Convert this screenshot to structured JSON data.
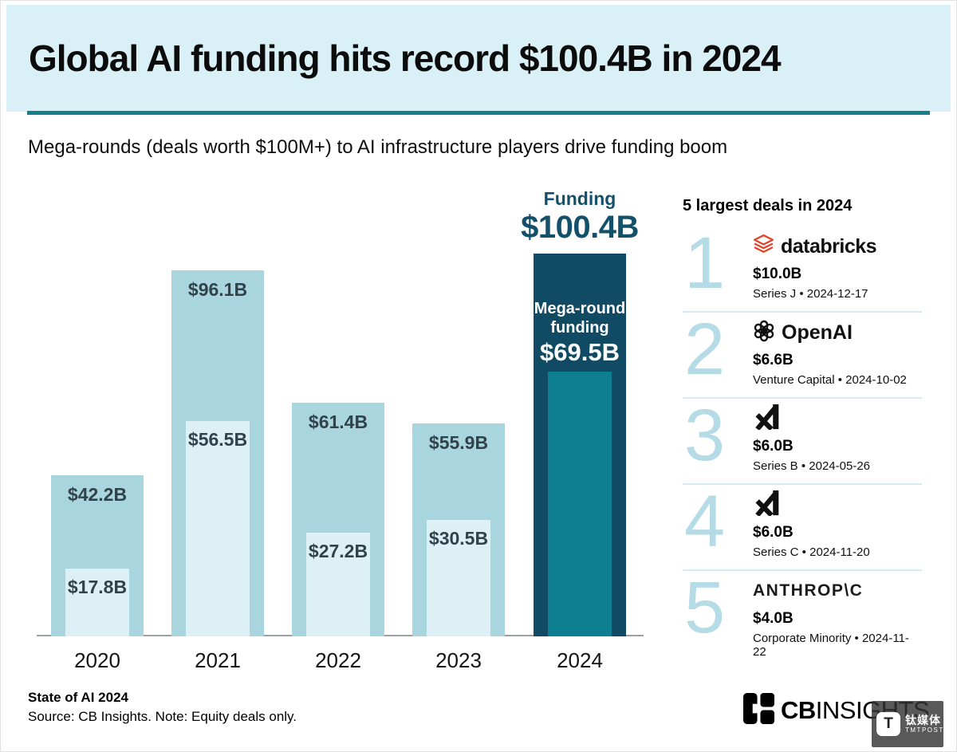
{
  "header": {
    "title": "Global AI funding hits record $100.4B in 2024",
    "subtitle": "Mega-rounds (deals worth $100M+) to AI infrastructure players drive funding boom"
  },
  "chart_data": {
    "type": "bar",
    "categories": [
      "2020",
      "2021",
      "2022",
      "2023",
      "2024"
    ],
    "series": [
      {
        "name": "Funding",
        "values": [
          42.2,
          96.1,
          61.4,
          55.9,
          100.4
        ]
      },
      {
        "name": "Mega-round funding",
        "values": [
          17.8,
          56.5,
          27.2,
          30.5,
          69.5
        ]
      }
    ],
    "value_prefix": "$",
    "value_suffix": "B",
    "ylim": [
      0,
      105
    ],
    "grid": false,
    "legend_position": "none",
    "highlight_index": 4,
    "annotations": {
      "funding_label": "Funding",
      "funding_value": "$100.4B",
      "mega_round_label": "Mega-round funding",
      "mega_round_value": "$69.5B"
    }
  },
  "deals": {
    "heading": "5 largest deals in 2024",
    "items": [
      {
        "rank": "1",
        "company": "databricks",
        "logo": "databricks-logo",
        "amount": "$10.0B",
        "detail": "Series J • 2024-12-17"
      },
      {
        "rank": "2",
        "company": "OpenAI",
        "logo": "openai-logo",
        "amount": "$6.6B",
        "detail": "Venture Capital • 2024-10-02"
      },
      {
        "rank": "3",
        "company": "xAI",
        "logo": "xai-logo",
        "amount": "$6.0B",
        "detail": "Series B • 2024-05-26"
      },
      {
        "rank": "4",
        "company": "xAI",
        "logo": "xai-logo",
        "amount": "$6.0B",
        "detail": "Series C • 2024-11-20"
      },
      {
        "rank": "5",
        "company": "ANTHROP\\C",
        "logo": "anthropic-wordmark",
        "amount": "$4.0B",
        "detail": "Corporate Minority • 2024-11-22"
      }
    ]
  },
  "footer": {
    "report": "State of AI 2024",
    "source": "Source: CB Insights. Note: Equity deals only.",
    "brand_cb": "CB",
    "brand_insights": "INSIGHTS"
  },
  "watermark": {
    "tile": "T",
    "cn": "钛媒体",
    "en": "TMTPOST"
  },
  "colors": {
    "header_bg": "#D9F0F7",
    "rule_teal": "#177E8E",
    "bar_light": "#A9D6DE",
    "bar_lighter": "#DDF0F5",
    "bar_dark": "#114A63",
    "bar_teal": "#0E7F90",
    "bar_label": "#32424B",
    "accent_navy": "#15506B",
    "rank_blue": "#B5DBE7",
    "divider": "#D5ECF3",
    "databricks_red": "#E0442C"
  }
}
